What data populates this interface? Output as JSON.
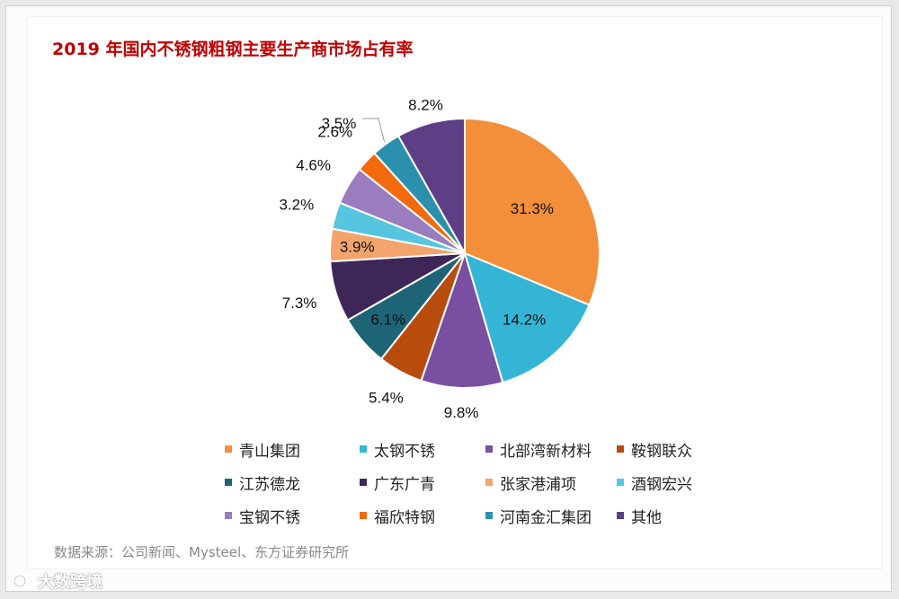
{
  "title": "2019 年国内不锈钢粗钢主要生产商市场占有率",
  "source": "数据来源：公司新闻、Mysteel、东方证券研究所",
  "watermark": "大数跨境",
  "chart_data": {
    "type": "pie",
    "title": "2019 年国内不锈钢粗钢主要生产商市场占有率",
    "unit": "%",
    "legend_position": "bottom",
    "start": "12 o'clock, clockwise",
    "series": [
      {
        "name": "青山集团",
        "value": 31.3,
        "label": "31.3%",
        "color": "#f38f3b"
      },
      {
        "name": "太钢不锈",
        "value": 14.2,
        "label": "14.2%",
        "color": "#35b5d6"
      },
      {
        "name": "北部湾新材料",
        "value": 9.8,
        "label": "9.8%",
        "color": "#7a4fa2"
      },
      {
        "name": "鞍钢联众",
        "value": 5.4,
        "label": "5.4%",
        "color": "#b84c0c"
      },
      {
        "name": "江苏德龙",
        "value": 6.1,
        "label": "6.1%",
        "color": "#1e6477"
      },
      {
        "name": "广东广青",
        "value": 7.3,
        "label": "7.3%",
        "color": "#3e2659"
      },
      {
        "name": "张家港浦项",
        "value": 3.9,
        "label": "3.9%",
        "color": "#f3a46c"
      },
      {
        "name": "酒钢宏兴",
        "value": 3.2,
        "label": "3.2%",
        "color": "#56c5e0"
      },
      {
        "name": "宝钢不锈",
        "value": 4.6,
        "label": "4.6%",
        "color": "#9a7cbf"
      },
      {
        "name": "福欣特钢",
        "value": 2.6,
        "label": "2.6%",
        "color": "#f26a0c"
      },
      {
        "name": "河南金汇集团",
        "value": 3.5,
        "label": "3.5%",
        "color": "#2b90ad"
      },
      {
        "name": "其他",
        "value": 8.2,
        "label": "8.2%",
        "color": "#5d3f86"
      }
    ]
  }
}
